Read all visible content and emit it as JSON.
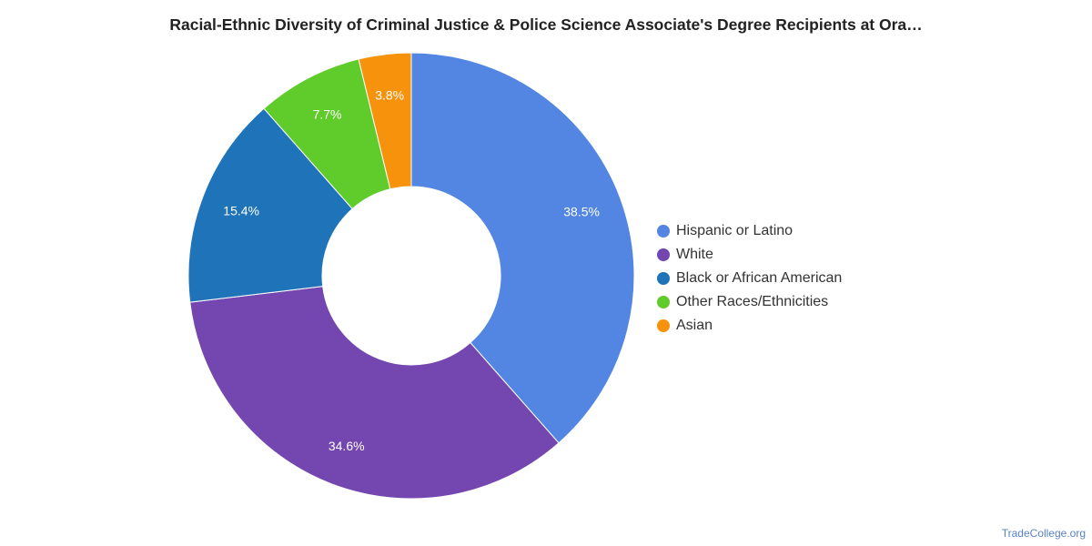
{
  "chart_data": {
    "type": "pie",
    "variant": "donut",
    "title": "Racial-Ethnic Diversity of Criminal Justice & Police Science Associate's Degree Recipients at Ora…",
    "slices": [
      {
        "label": "Hispanic or Latino",
        "value": 38.5,
        "display": "38.5%",
        "color": "#5286e2"
      },
      {
        "label": "White",
        "value": 34.6,
        "display": "34.6%",
        "color": "#7447b0"
      },
      {
        "label": "Black or African American",
        "value": 15.4,
        "display": "15.4%",
        "color": "#1e73b9"
      },
      {
        "label": "Other Races/Ethnicities",
        "value": 7.7,
        "display": "7.7%",
        "color": "#60cc2b"
      },
      {
        "label": "Asian",
        "value": 3.8,
        "display": "3.8%",
        "color": "#f7920d"
      }
    ],
    "legend_position": "right"
  },
  "legend": {
    "items": [
      {
        "label": "Hispanic or Latino",
        "color": "#5286e2"
      },
      {
        "label": "White",
        "color": "#7447b0"
      },
      {
        "label": "Black or African American",
        "color": "#1e73b9"
      },
      {
        "label": "Other Races/Ethnicities",
        "color": "#60cc2b"
      },
      {
        "label": "Asian",
        "color": "#f7920d"
      }
    ]
  },
  "watermark": "TradeCollege.org"
}
